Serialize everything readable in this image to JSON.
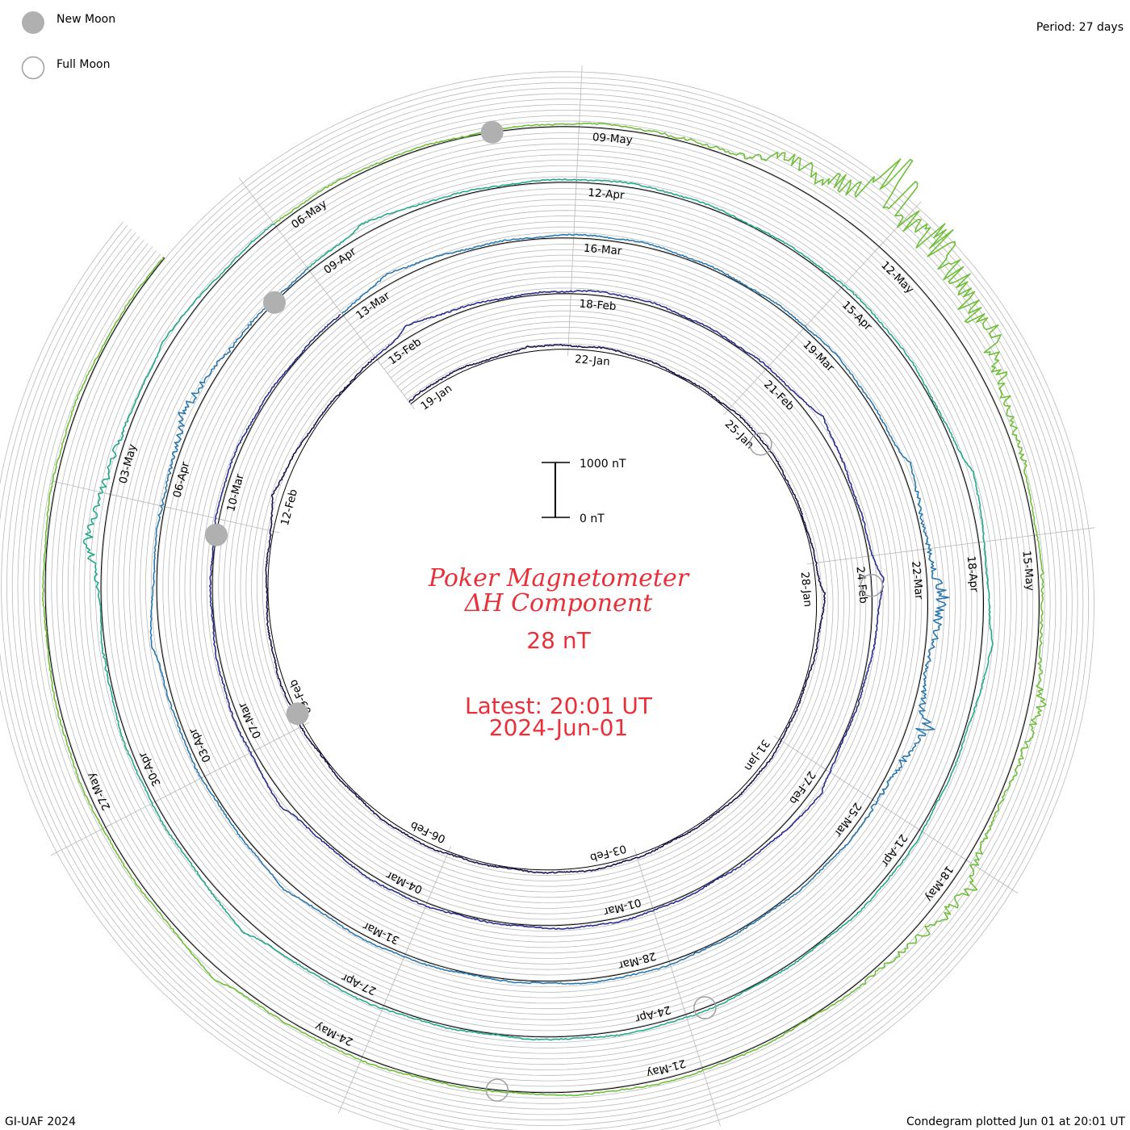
{
  "header": {
    "period_text": "Period: 27 days",
    "legend_new_moon": "New Moon",
    "legend_full_moon": "Full Moon"
  },
  "center": {
    "title_line1": "Poker Magnetometer",
    "title_line2": "ΔH Component",
    "value": "28 nT",
    "latest_line1": "Latest: 20:01 UT",
    "latest_line2": "2024-Jun-01",
    "scale_top": "1000 nT",
    "scale_bottom": "0 nT"
  },
  "footer": {
    "left": "GI-UAF 2024",
    "right": "Condegram plotted Jun 01 at 20:01 UT"
  },
  "colors": {
    "title": "#e8303a",
    "grid": "#b9b9b9",
    "moon_new": "#b0b0b0",
    "moon_full": "#a0a0a0",
    "turns": [
      "#1b1550",
      "#2a2e8f",
      "#2a78b0",
      "#25a98c",
      "#6fbf3a",
      "#b3a826",
      "#c9811a",
      "#b8310c"
    ]
  },
  "chart_data": {
    "type": "condegram",
    "period_days": 27,
    "scale_nT": [
      0,
      1000
    ],
    "date_labels": [
      {
        "text": "19-Jan",
        "day": 0
      },
      {
        "text": "22-Jan",
        "day": 3
      },
      {
        "text": "25-Jan",
        "day": 6
      },
      {
        "text": "28-Jan",
        "day": 9
      },
      {
        "text": "31-Jan",
        "day": 12
      },
      {
        "text": "03-Feb",
        "day": 15
      },
      {
        "text": "06-Feb",
        "day": 18
      },
      {
        "text": "09-Feb",
        "day": 21
      },
      {
        "text": "12-Feb",
        "day": 24
      },
      {
        "text": "15-Feb",
        "day": 27
      },
      {
        "text": "18-Feb",
        "day": 30
      },
      {
        "text": "21-Feb",
        "day": 33
      },
      {
        "text": "24-Feb",
        "day": 36
      },
      {
        "text": "27-Feb",
        "day": 39
      },
      {
        "text": "01-Mar",
        "day": 42
      },
      {
        "text": "04-Mar",
        "day": 45
      },
      {
        "text": "07-Mar",
        "day": 48
      },
      {
        "text": "10-Mar",
        "day": 51
      },
      {
        "text": "13-Mar",
        "day": 54
      },
      {
        "text": "16-Mar",
        "day": 57
      },
      {
        "text": "19-Mar",
        "day": 60
      },
      {
        "text": "22-Mar",
        "day": 63
      },
      {
        "text": "25-Mar",
        "day": 66
      },
      {
        "text": "28-Mar",
        "day": 69
      },
      {
        "text": "31-Mar",
        "day": 72
      },
      {
        "text": "03-Apr",
        "day": 75
      },
      {
        "text": "06-Apr",
        "day": 78
      },
      {
        "text": "09-Apr",
        "day": 81
      },
      {
        "text": "12-Apr",
        "day": 84
      },
      {
        "text": "15-Apr",
        "day": 87
      },
      {
        "text": "18-Apr",
        "day": 90
      },
      {
        "text": "21-Apr",
        "day": 93
      },
      {
        "text": "24-Apr",
        "day": 96
      },
      {
        "text": "27-Apr",
        "day": 99
      },
      {
        "text": "30-Apr",
        "day": 102
      },
      {
        "text": "03-May",
        "day": 105
      },
      {
        "text": "06-May",
        "day": 108
      },
      {
        "text": "09-May",
        "day": 111
      },
      {
        "text": "12-May",
        "day": 114
      },
      {
        "text": "15-May",
        "day": 117
      },
      {
        "text": "18-May",
        "day": 120
      },
      {
        "text": "21-May",
        "day": 123
      },
      {
        "text": "24-May",
        "day": 126
      },
      {
        "text": "27-May",
        "day": 129
      }
    ],
    "new_moons_day": [
      21.2,
      50.8,
      80.5,
      110.2
    ],
    "full_moons_day": [
      6.8,
      36.4,
      95.8,
      124.8
    ],
    "disturbances": [
      {
        "day": 2.3,
        "nT": 80
      },
      {
        "day": 9.5,
        "nT": 90
      },
      {
        "day": 24.5,
        "nT": 120
      },
      {
        "day": 27.6,
        "nT": 140
      },
      {
        "day": 34.0,
        "nT": 140
      },
      {
        "day": 36.3,
        "nT": 160
      },
      {
        "day": 39.3,
        "nT": 130
      },
      {
        "day": 47.2,
        "nT": 150
      },
      {
        "day": 54.7,
        "nT": 130
      },
      {
        "day": 62.0,
        "nT": 150
      },
      {
        "day": 63.5,
        "nT": 240
      },
      {
        "day": 65.0,
        "nT": 300
      },
      {
        "day": 73.5,
        "nT": 120
      },
      {
        "day": 76.5,
        "nT": 150
      },
      {
        "day": 79.0,
        "nT": 220
      },
      {
        "day": 81.7,
        "nT": 130
      },
      {
        "day": 89.3,
        "nT": 180
      },
      {
        "day": 91.0,
        "nT": 160
      },
      {
        "day": 100.5,
        "nT": 200
      },
      {
        "day": 104.5,
        "nT": 280
      },
      {
        "day": 106.5,
        "nT": 130
      },
      {
        "day": 112.8,
        "nT": 350
      },
      {
        "day": 113.7,
        "nT": 1050
      },
      {
        "day": 114.4,
        "nT": 400
      },
      {
        "day": 115.2,
        "nT": 250
      },
      {
        "day": 118.5,
        "nT": 220
      },
      {
        "day": 120.2,
        "nT": 330
      },
      {
        "day": 127.4,
        "nT": 160
      }
    ],
    "end_day": 134.1
  }
}
